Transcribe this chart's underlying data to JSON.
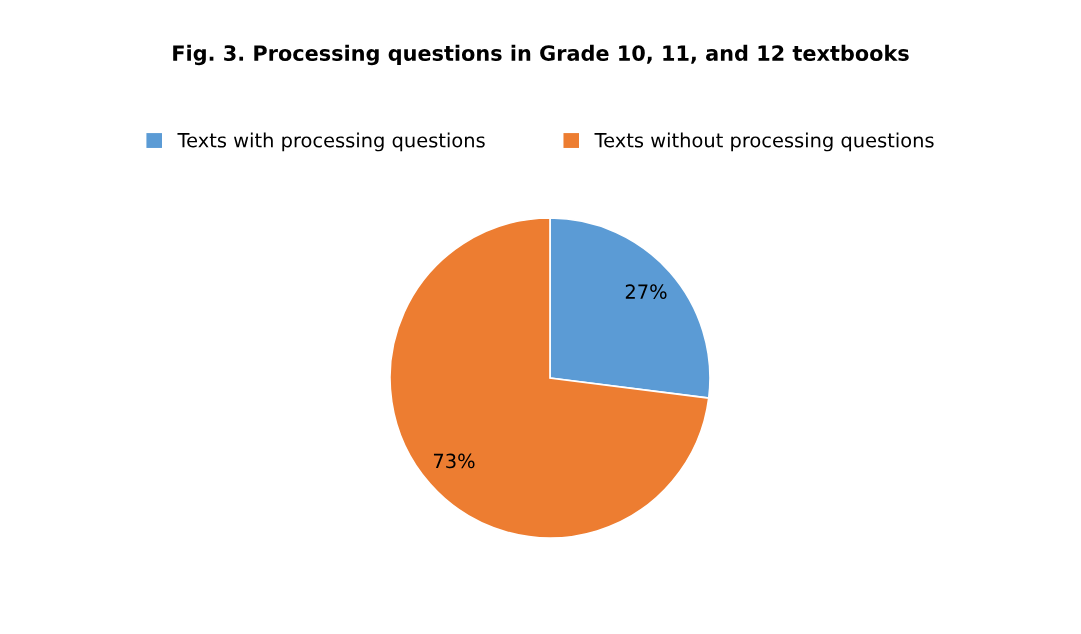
{
  "chart_data": {
    "type": "pie",
    "title": "Fig. 3. Processing questions in Grade 10, 11, and 12 textbooks",
    "categories": [
      "Texts with processing questions",
      "Texts without processing questions"
    ],
    "values": [
      27,
      73
    ],
    "colors": [
      "#5b9bd5",
      "#ed7d31"
    ],
    "value_labels": [
      "27%",
      "73%"
    ],
    "legend": "top"
  }
}
